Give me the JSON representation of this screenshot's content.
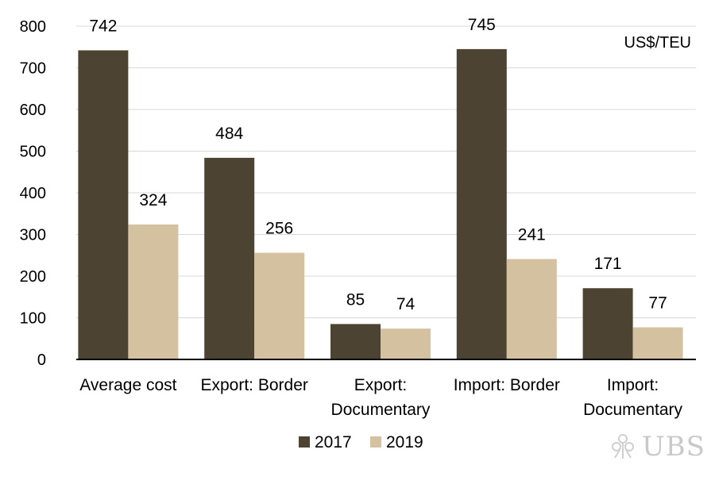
{
  "chart_data": {
    "type": "bar",
    "categories": [
      [
        "Average cost"
      ],
      [
        "Export: Border"
      ],
      [
        "Export:",
        "Documentary"
      ],
      [
        "Import: Border"
      ],
      [
        "Import:",
        "Documentary"
      ]
    ],
    "series": [
      {
        "name": "2017",
        "values": [
          742,
          484,
          85,
          745,
          171
        ],
        "color": "#4d4333"
      },
      {
        "name": "2019",
        "values": [
          324,
          256,
          74,
          241,
          77
        ],
        "color": "#d3c1a0"
      }
    ],
    "data_labels": [
      [
        "742",
        "484",
        "85",
        "745",
        "171"
      ],
      [
        "324",
        "256",
        "74",
        "241",
        "77"
      ]
    ],
    "yticks": [
      0,
      100,
      200,
      300,
      400,
      500,
      600,
      700,
      800
    ],
    "ylim": [
      0,
      800
    ],
    "unit_label": "US$/TEU",
    "grid": true,
    "legend": "bottom-center",
    "title": "",
    "xlabel": "",
    "ylabel": ""
  },
  "logo": {
    "text": "UBS",
    "color": "#c9c9c9"
  }
}
